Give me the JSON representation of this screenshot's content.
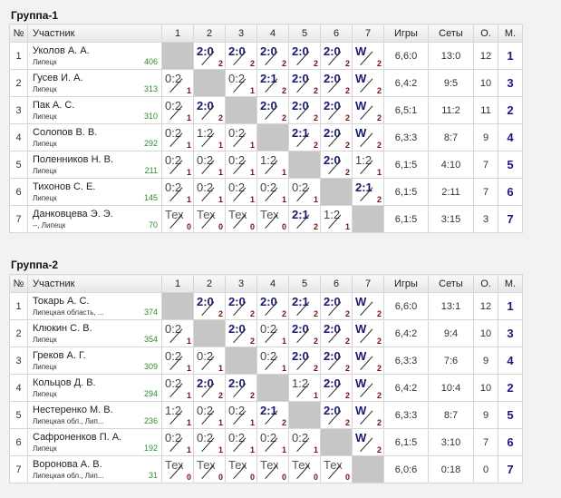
{
  "headers": {
    "num": "№",
    "player": "Участник",
    "cols": [
      "1",
      "2",
      "3",
      "4",
      "5",
      "6",
      "7"
    ],
    "games": "Игры",
    "sets": "Сеты",
    "points": "О.",
    "place": "М."
  },
  "groups": [
    {
      "title": "Группа-1",
      "players": [
        {
          "n": "1",
          "name": "Уколов А. А.",
          "city": "Липецк",
          "rating": "406",
          "cells": [
            {
              "self": true
            },
            {
              "s": "2:0",
              "p": "2",
              "r": "win"
            },
            {
              "s": "2:0",
              "p": "2",
              "r": "win"
            },
            {
              "s": "2:0",
              "p": "2",
              "r": "win"
            },
            {
              "s": "2:0",
              "p": "2",
              "r": "win"
            },
            {
              "s": "2:0",
              "p": "2",
              "r": "win"
            },
            {
              "s": "W",
              "p": "2",
              "r": "win"
            }
          ],
          "games": "6,6:0",
          "sets": "13:0",
          "points": "12",
          "place": "1"
        },
        {
          "n": "2",
          "name": "Гусев И. А.",
          "city": "Липецк",
          "rating": "313",
          "cells": [
            {
              "s": "0:2",
              "p": "1",
              "r": "lose"
            },
            {
              "self": true
            },
            {
              "s": "0:2",
              "p": "1",
              "r": "lose"
            },
            {
              "s": "2:1",
              "p": "2",
              "r": "win"
            },
            {
              "s": "2:0",
              "p": "2",
              "r": "win"
            },
            {
              "s": "2:0",
              "p": "2",
              "r": "win"
            },
            {
              "s": "W",
              "p": "2",
              "r": "win"
            }
          ],
          "games": "6,4:2",
          "sets": "9:5",
          "points": "10",
          "place": "3"
        },
        {
          "n": "3",
          "name": "Пак А. С.",
          "city": "Липецк",
          "rating": "310",
          "cells": [
            {
              "s": "0:2",
              "p": "1",
              "r": "lose"
            },
            {
              "s": "2:0",
              "p": "2",
              "r": "win"
            },
            {
              "self": true
            },
            {
              "s": "2:0",
              "p": "2",
              "r": "win"
            },
            {
              "s": "2:0",
              "p": "2",
              "r": "win"
            },
            {
              "s": "2:0",
              "p": "2",
              "r": "win"
            },
            {
              "s": "W",
              "p": "2",
              "r": "win"
            }
          ],
          "games": "6,5:1",
          "sets": "11:2",
          "points": "11",
          "place": "2"
        },
        {
          "n": "4",
          "name": "Солопов В. В.",
          "city": "Липецк",
          "rating": "292",
          "cells": [
            {
              "s": "0:2",
              "p": "1",
              "r": "lose"
            },
            {
              "s": "1:2",
              "p": "1",
              "r": "lose"
            },
            {
              "s": "0:2",
              "p": "1",
              "r": "lose"
            },
            {
              "self": true
            },
            {
              "s": "2:1",
              "p": "2",
              "r": "win"
            },
            {
              "s": "2:0",
              "p": "2",
              "r": "win"
            },
            {
              "s": "W",
              "p": "2",
              "r": "win"
            }
          ],
          "games": "6,3:3",
          "sets": "8:7",
          "points": "9",
          "place": "4"
        },
        {
          "n": "5",
          "name": "Поленников Н. В.",
          "city": "Липецк",
          "rating": "211",
          "cells": [
            {
              "s": "0:2",
              "p": "1",
              "r": "lose"
            },
            {
              "s": "0:2",
              "p": "1",
              "r": "lose"
            },
            {
              "s": "0:2",
              "p": "1",
              "r": "lose"
            },
            {
              "s": "1:2",
              "p": "1",
              "r": "lose"
            },
            {
              "self": true
            },
            {
              "s": "2:0",
              "p": "2",
              "r": "win"
            },
            {
              "s": "1:2",
              "p": "1",
              "r": "lose"
            }
          ],
          "games": "6,1:5",
          "sets": "4:10",
          "points": "7",
          "place": "5"
        },
        {
          "n": "6",
          "name": "Тихонов С. Е.",
          "city": "Липецк",
          "rating": "145",
          "cells": [
            {
              "s": "0:2",
              "p": "1",
              "r": "lose"
            },
            {
              "s": "0:2",
              "p": "1",
              "r": "lose"
            },
            {
              "s": "0:2",
              "p": "1",
              "r": "lose"
            },
            {
              "s": "0:2",
              "p": "1",
              "r": "lose"
            },
            {
              "s": "0:2",
              "p": "1",
              "r": "lose"
            },
            {
              "self": true
            },
            {
              "s": "2:1",
              "p": "2",
              "r": "win"
            }
          ],
          "games": "6,1:5",
          "sets": "2:11",
          "points": "7",
          "place": "6"
        },
        {
          "n": "7",
          "name": "Данковцева Э. Э.",
          "city": "--, Липецк",
          "rating": "70",
          "cells": [
            {
              "s": "Тех",
              "p": "0",
              "r": "tex"
            },
            {
              "s": "Тех",
              "p": "0",
              "r": "tex"
            },
            {
              "s": "Тех",
              "p": "0",
              "r": "tex"
            },
            {
              "s": "Тех",
              "p": "0",
              "r": "tex"
            },
            {
              "s": "2:1",
              "p": "2",
              "r": "win"
            },
            {
              "s": "1:2",
              "p": "1",
              "r": "lose"
            },
            {
              "self": true
            }
          ],
          "games": "6,1:5",
          "sets": "3:15",
          "points": "3",
          "place": "7"
        }
      ]
    },
    {
      "title": "Группа-2",
      "players": [
        {
          "n": "1",
          "name": "Токарь А. С.",
          "city": "Липецкая область, ...",
          "rating": "374",
          "cells": [
            {
              "self": true
            },
            {
              "s": "2:0",
              "p": "2",
              "r": "win"
            },
            {
              "s": "2:0",
              "p": "2",
              "r": "win"
            },
            {
              "s": "2:0",
              "p": "2",
              "r": "win"
            },
            {
              "s": "2:1",
              "p": "2",
              "r": "win"
            },
            {
              "s": "2:0",
              "p": "2",
              "r": "win"
            },
            {
              "s": "W",
              "p": "2",
              "r": "win"
            }
          ],
          "games": "6,6:0",
          "sets": "13:1",
          "points": "12",
          "place": "1"
        },
        {
          "n": "2",
          "name": "Клюкин С. В.",
          "city": "Липецк",
          "rating": "354",
          "cells": [
            {
              "s": "0:2",
              "p": "1",
              "r": "lose"
            },
            {
              "self": true
            },
            {
              "s": "2:0",
              "p": "2",
              "r": "win"
            },
            {
              "s": "0:2",
              "p": "1",
              "r": "lose"
            },
            {
              "s": "2:0",
              "p": "2",
              "r": "win"
            },
            {
              "s": "2:0",
              "p": "2",
              "r": "win"
            },
            {
              "s": "W",
              "p": "2",
              "r": "win"
            }
          ],
          "games": "6,4:2",
          "sets": "9:4",
          "points": "10",
          "place": "3"
        },
        {
          "n": "3",
          "name": "Греков А. Г.",
          "city": "Липецк",
          "rating": "309",
          "cells": [
            {
              "s": "0:2",
              "p": "1",
              "r": "lose"
            },
            {
              "s": "0:2",
              "p": "1",
              "r": "lose"
            },
            {
              "self": true
            },
            {
              "s": "0:2",
              "p": "1",
              "r": "lose"
            },
            {
              "s": "2:0",
              "p": "2",
              "r": "win"
            },
            {
              "s": "2:0",
              "p": "2",
              "r": "win"
            },
            {
              "s": "W",
              "p": "2",
              "r": "win"
            }
          ],
          "games": "6,3:3",
          "sets": "7:6",
          "points": "9",
          "place": "4"
        },
        {
          "n": "4",
          "name": "Кольцов Д. В.",
          "city": "Липецк",
          "rating": "294",
          "cells": [
            {
              "s": "0:2",
              "p": "1",
              "r": "lose"
            },
            {
              "s": "2:0",
              "p": "2",
              "r": "win"
            },
            {
              "s": "2:0",
              "p": "2",
              "r": "win"
            },
            {
              "self": true
            },
            {
              "s": "1:2",
              "p": "1",
              "r": "lose"
            },
            {
              "s": "2:0",
              "p": "2",
              "r": "win"
            },
            {
              "s": "W",
              "p": "2",
              "r": "win"
            }
          ],
          "games": "6,4:2",
          "sets": "10:4",
          "points": "10",
          "place": "2"
        },
        {
          "n": "5",
          "name": "Нестеренко М. В.",
          "city": "Липецкая обл., Лип...",
          "rating": "236",
          "cells": [
            {
              "s": "1:2",
              "p": "1",
              "r": "lose"
            },
            {
              "s": "0:2",
              "p": "1",
              "r": "lose"
            },
            {
              "s": "0:2",
              "p": "1",
              "r": "lose"
            },
            {
              "s": "2:1",
              "p": "2",
              "r": "win"
            },
            {
              "self": true
            },
            {
              "s": "2:0",
              "p": "2",
              "r": "win"
            },
            {
              "s": "W",
              "p": "2",
              "r": "win"
            }
          ],
          "games": "6,3:3",
          "sets": "8:7",
          "points": "9",
          "place": "5"
        },
        {
          "n": "6",
          "name": "Сафроненков П. А.",
          "city": "Липецк",
          "rating": "192",
          "cells": [
            {
              "s": "0:2",
              "p": "1",
              "r": "lose"
            },
            {
              "s": "0:2",
              "p": "1",
              "r": "lose"
            },
            {
              "s": "0:2",
              "p": "1",
              "r": "lose"
            },
            {
              "s": "0:2",
              "p": "1",
              "r": "lose"
            },
            {
              "s": "0:2",
              "p": "1",
              "r": "lose"
            },
            {
              "self": true
            },
            {
              "s": "W",
              "p": "2",
              "r": "win"
            }
          ],
          "games": "6,1:5",
          "sets": "3:10",
          "points": "7",
          "place": "6"
        },
        {
          "n": "7",
          "name": "Воронова А. В.",
          "city": "Липецкая обл., Лип...",
          "rating": "31",
          "cells": [
            {
              "s": "Тех",
              "p": "0",
              "r": "tex"
            },
            {
              "s": "Тех",
              "p": "0",
              "r": "tex"
            },
            {
              "s": "Тех",
              "p": "0",
              "r": "tex"
            },
            {
              "s": "Тех",
              "p": "0",
              "r": "tex"
            },
            {
              "s": "Тех",
              "p": "0",
              "r": "tex"
            },
            {
              "s": "Тех",
              "p": "0",
              "r": "tex"
            },
            {
              "self": true
            }
          ],
          "games": "6,0:6",
          "sets": "0:18",
          "points": "0",
          "place": "7"
        }
      ]
    }
  ]
}
